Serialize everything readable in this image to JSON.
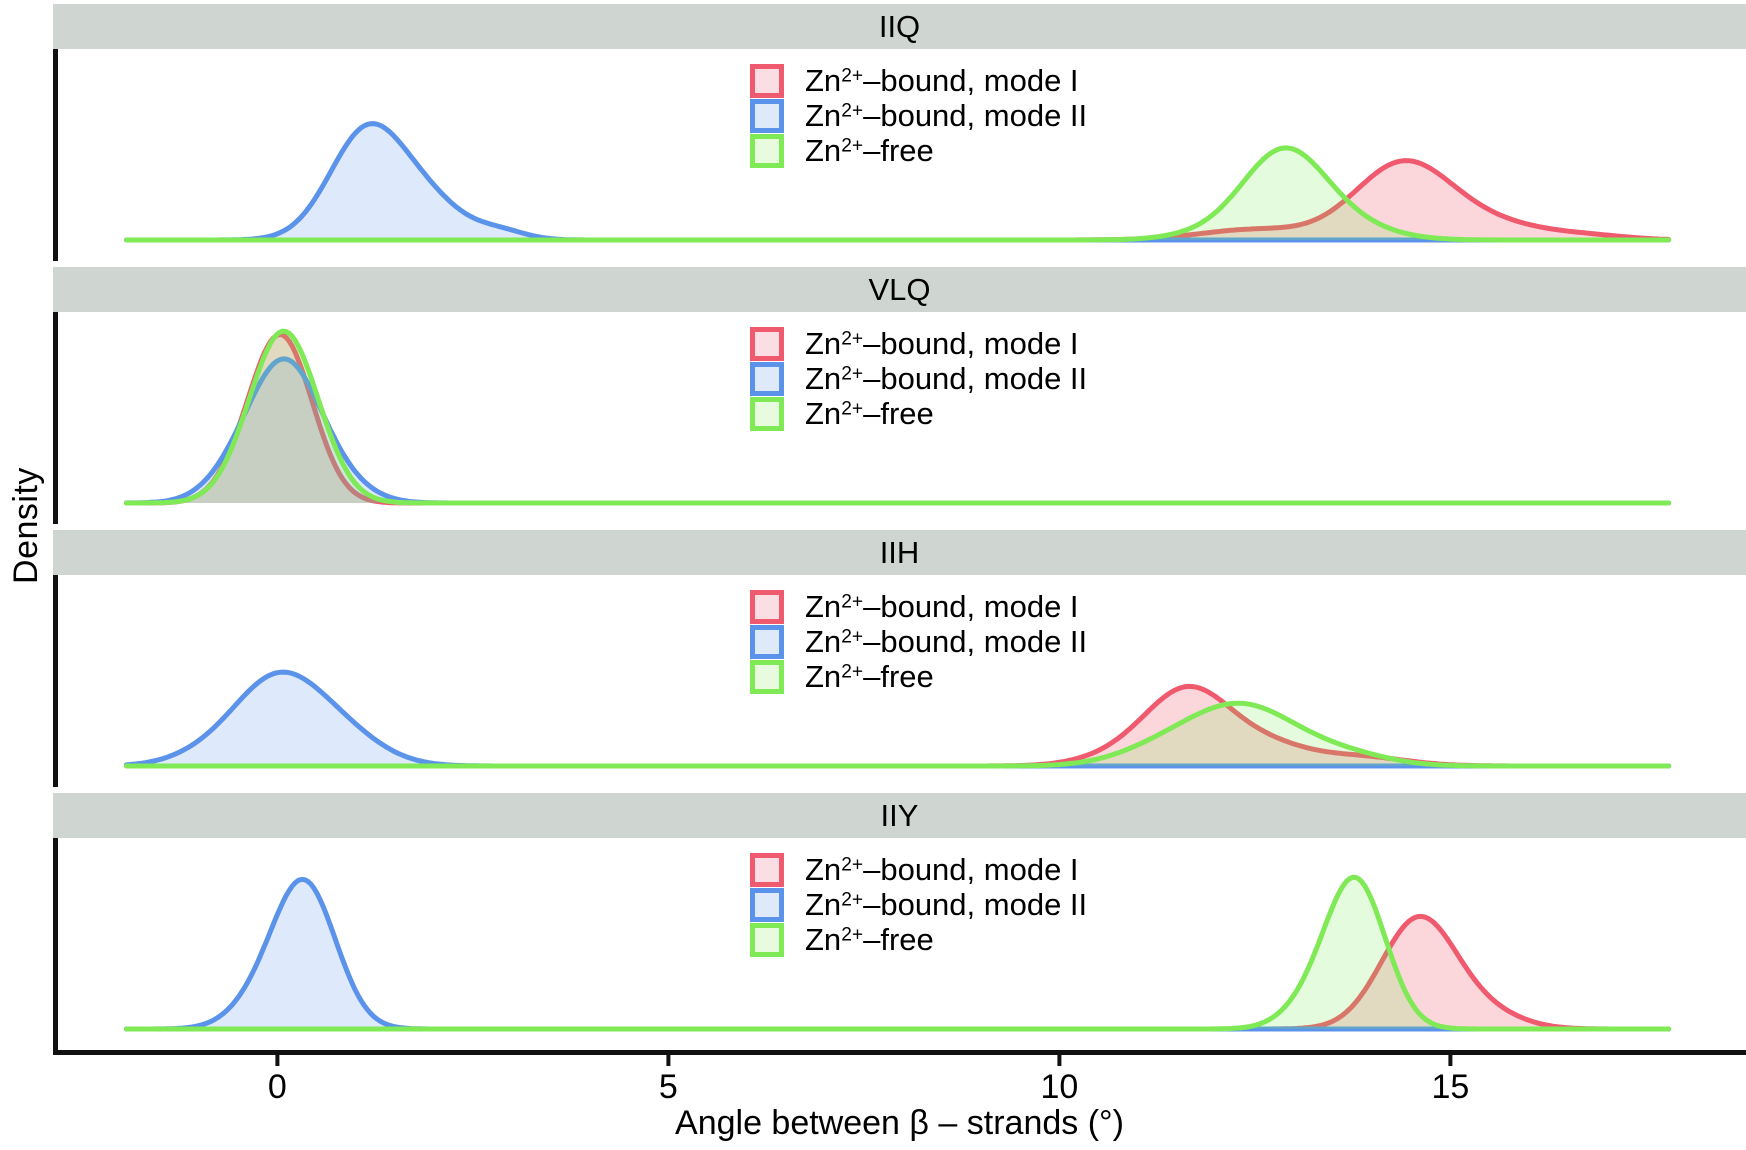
{
  "chart_data": {
    "type": "area",
    "subtype": "faceted-density-plot",
    "title": "",
    "xlabel": "Angle between β – strands (°)",
    "ylabel": "Density",
    "xlim": [
      -2.87,
      18.78
    ],
    "xticks": [
      0,
      5,
      10,
      15
    ],
    "curve_domain_deg": [
      -1.93,
      17.8
    ],
    "grid": false,
    "y_axis_ticks": "none (density, unlabeled)",
    "strip_bg": "#cfd6d2",
    "axis_color": "#111111",
    "legend": {
      "position": "top-center of each panel",
      "entries": [
        {
          "zn": "Zn",
          "sup": "2+",
          "rest": "–bound, mode I",
          "stroke": "#ef5a6f",
          "fill": "#fbdee3"
        },
        {
          "zn": "Zn",
          "sup": "2+",
          "rest": "–bound, mode II",
          "stroke": "#5b93ea",
          "fill": "#dee9fa"
        },
        {
          "zn": "Zn",
          "sup": "2+",
          "rest": "–free",
          "stroke": "#7fe956",
          "fill": "#e9fbde"
        }
      ]
    },
    "series_style": {
      "mode1": {
        "label": "Zn2+–bound, mode I",
        "stroke": "#ef5a6f",
        "fill": "rgba(239,90,111,0.25)"
      },
      "mode2": {
        "label": "Zn2+–bound, mode II",
        "stroke": "#5b93ea",
        "fill": "rgba(91,147,234,0.20)"
      },
      "free": {
        "label": "Zn2+–free",
        "stroke": "#7fe956",
        "fill": "rgba(127,233,86,0.20)"
      }
    },
    "draw_order": [
      "mode1",
      "mode2",
      "free"
    ],
    "panels": [
      {
        "label": "IIQ",
        "peak_summary_deg": {
          "mode1": 14.4,
          "mode2": 1.2,
          "free": 12.9
        },
        "peak_height_frac": {
          "mode1": 0.42,
          "mode2": 0.68,
          "free": 0.48
        },
        "curves": {
          "mode1": [
            {
              "mu": 14.4,
              "sigma": 0.62,
              "amp": 0.4
            },
            {
              "mu": 15.6,
              "sigma": 0.65,
              "amp": 0.075
            },
            {
              "mu": 12.5,
              "sigma": 0.7,
              "amp": 0.055
            },
            {
              "mu": 16.8,
              "sigma": 0.5,
              "amp": 0.02
            }
          ],
          "mode2": [
            {
              "mu": 1.15,
              "sigma": 0.48,
              "amp": 0.57
            },
            {
              "mu": 1.95,
              "sigma": 0.45,
              "amp": 0.17
            },
            {
              "mu": 2.85,
              "sigma": 0.33,
              "amp": 0.045
            }
          ],
          "free": [
            {
              "mu": 12.85,
              "sigma": 0.52,
              "amp": 0.43
            },
            {
              "mu": 13.55,
              "sigma": 0.6,
              "amp": 0.09
            },
            {
              "mu": 11.9,
              "sigma": 0.5,
              "amp": 0.03
            }
          ]
        }
      },
      {
        "label": "VLQ",
        "peak_summary_deg": {
          "mode1": 0.05,
          "mode2": 0.1,
          "free": 0.1
        },
        "peak_height_frac": {
          "mode1": 0.89,
          "mode2": 0.79,
          "free": 0.92
        },
        "curves": {
          "mode1": [
            {
              "mu": 0.05,
              "sigma": 0.4,
              "amp": 0.86
            },
            {
              "mu": -0.45,
              "sigma": 0.35,
              "amp": 0.06
            }
          ],
          "mode2": [
            {
              "mu": 0.1,
              "sigma": 0.46,
              "amp": 0.72
            },
            {
              "mu": -0.55,
              "sigma": 0.4,
              "amp": 0.09
            },
            {
              "mu": 0.85,
              "sigma": 0.4,
              "amp": 0.06
            }
          ],
          "free": [
            {
              "mu": 0.08,
              "sigma": 0.44,
              "amp": 0.9
            }
          ]
        }
      },
      {
        "label": "IIH",
        "peak_summary_deg": {
          "mode1": 11.7,
          "mode2": 0.0,
          "free": 12.4
        },
        "peak_height_frac": {
          "mode1": 0.46,
          "mode2": 0.55,
          "free": 0.38
        },
        "curves": {
          "mode1": [
            {
              "mu": 11.65,
              "sigma": 0.55,
              "amp": 0.4
            },
            {
              "mu": 12.7,
              "sigma": 0.5,
              "amp": 0.09
            },
            {
              "mu": 13.8,
              "sigma": 0.6,
              "amp": 0.05
            },
            {
              "mu": 10.7,
              "sigma": 0.5,
              "amp": 0.04
            }
          ],
          "mode2": [
            {
              "mu": -0.05,
              "sigma": 0.55,
              "amp": 0.42
            },
            {
              "mu": 0.75,
              "sigma": 0.55,
              "amp": 0.17
            },
            {
              "mu": -1.0,
              "sigma": 0.45,
              "amp": 0.04
            }
          ],
          "free": [
            {
              "mu": 12.35,
              "sigma": 0.7,
              "amp": 0.31
            },
            {
              "mu": 11.3,
              "sigma": 0.6,
              "amp": 0.07
            },
            {
              "mu": 13.7,
              "sigma": 0.55,
              "amp": 0.05
            }
          ]
        }
      },
      {
        "label": "IIY",
        "peak_summary_deg": {
          "mode1": 14.6,
          "mode2": 0.35,
          "free": 13.8
        },
        "peak_height_frac": {
          "mode1": 0.63,
          "mode2": 0.8,
          "free": 0.8
        },
        "curves": {
          "mode1": [
            {
              "mu": 14.6,
              "sigma": 0.48,
              "amp": 0.58
            },
            {
              "mu": 15.5,
              "sigma": 0.45,
              "amp": 0.07
            }
          ],
          "mode2": [
            {
              "mu": 0.35,
              "sigma": 0.4,
              "amp": 0.75
            },
            {
              "mu": -0.25,
              "sigma": 0.38,
              "amp": 0.11
            }
          ],
          "free": [
            {
              "mu": 13.8,
              "sigma": 0.38,
              "amp": 0.75
            },
            {
              "mu": 13.25,
              "sigma": 0.38,
              "amp": 0.12
            }
          ]
        }
      }
    ]
  }
}
